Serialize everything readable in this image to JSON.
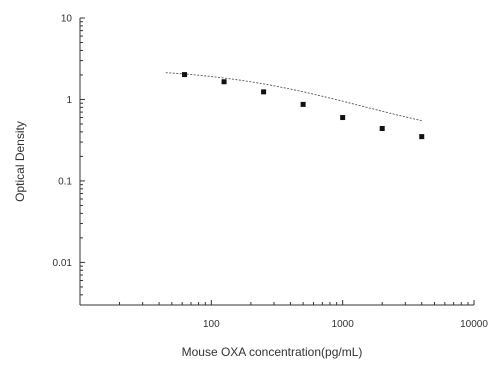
{
  "chart_data": {
    "type": "scatter",
    "title": "",
    "xlabel": "Mouse OXA concentration(pg/mL)",
    "ylabel": "Optical Density",
    "x_scale": "log",
    "y_scale": "log",
    "xlim": [
      10,
      10000
    ],
    "ylim": [
      0.003,
      10
    ],
    "x_ticks": [
      100,
      1000,
      10000
    ],
    "x_tick_labels": [
      "100",
      "1000",
      "10000"
    ],
    "y_ticks": [
      0.01,
      0.1,
      1,
      10
    ],
    "y_tick_labels": [
      "0.01",
      "0.1",
      "1",
      "10"
    ],
    "grid": false,
    "legend": "none",
    "series": [
      {
        "points": [
          {
            "x": 62.5,
            "y": 2.02
          },
          {
            "x": 125,
            "y": 1.65
          },
          {
            "x": 250,
            "y": 1.24
          },
          {
            "x": 500,
            "y": 0.87
          },
          {
            "x": 1000,
            "y": 0.6
          },
          {
            "x": 2000,
            "y": 0.44
          },
          {
            "x": 4000,
            "y": 0.35
          }
        ]
      }
    ],
    "fit_curve": {
      "x_range": [
        45,
        4000
      ],
      "model": "4PL",
      "params": {
        "a": 2.45,
        "d": 0.28,
        "c": 380,
        "b": 0.83
      }
    },
    "colors": {
      "axis": "#333333",
      "marker": "#111111",
      "curve": "#555555"
    }
  }
}
